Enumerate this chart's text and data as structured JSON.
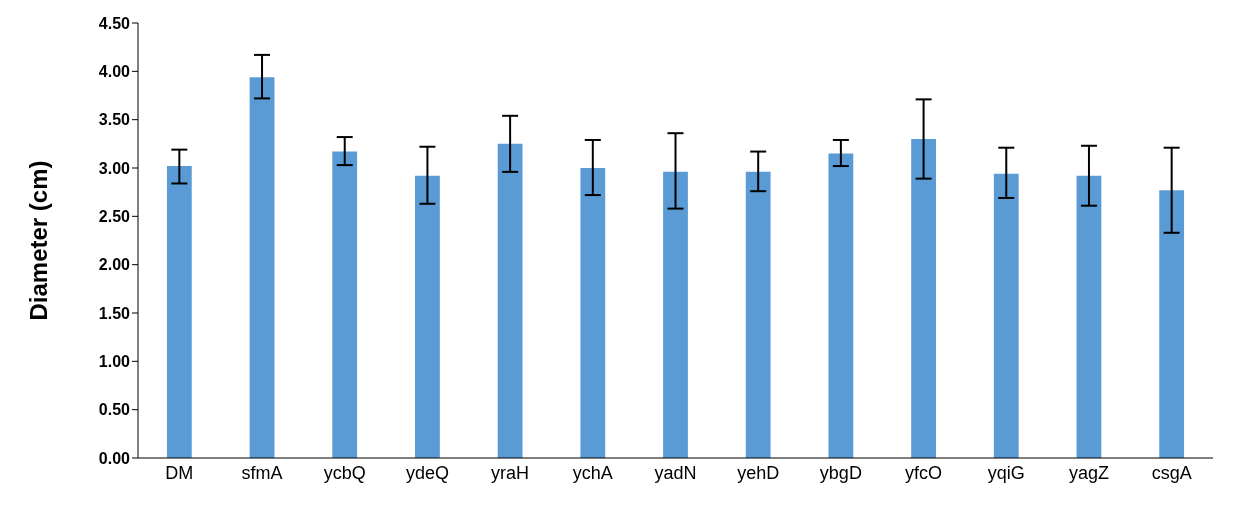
{
  "chart_data": {
    "type": "bar",
    "ylabel": "Diameter (cm)",
    "categories": [
      "DM",
      "sfmA",
      "ycbQ",
      "ydeQ",
      "yraH",
      "ychA",
      "yadN",
      "yehD",
      "ybgD",
      "yfcO",
      "yqiG",
      "yagZ",
      "csgA"
    ],
    "values": [
      3.02,
      3.94,
      3.17,
      2.92,
      3.25,
      3.0,
      2.96,
      2.96,
      3.15,
      3.3,
      2.94,
      2.92,
      2.77
    ],
    "errors": [
      [
        2.84,
        3.19
      ],
      [
        3.72,
        4.17
      ],
      [
        3.03,
        3.32
      ],
      [
        2.63,
        3.22
      ],
      [
        2.96,
        3.54
      ],
      [
        2.72,
        3.29
      ],
      [
        2.58,
        3.36
      ],
      [
        2.76,
        3.17
      ],
      [
        3.02,
        3.29
      ],
      [
        2.89,
        3.71
      ],
      [
        2.69,
        3.21
      ],
      [
        2.61,
        3.23
      ],
      [
        2.33,
        3.21
      ]
    ],
    "color": "#5b9bd5",
    "ylim": [
      0,
      4.5
    ],
    "yticks": [
      {
        "value": 0,
        "label": "0.00"
      },
      {
        "value": 0.5,
        "label": "0.50"
      },
      {
        "value": 1,
        "label": "1.00"
      },
      {
        "value": 1.5,
        "label": "1.50"
      },
      {
        "value": 2,
        "label": "2.00"
      },
      {
        "value": 2.5,
        "label": "2.50"
      },
      {
        "value": 3,
        "label": "3.00"
      },
      {
        "value": 3.5,
        "label": "3.50"
      },
      {
        "value": 4,
        "label": "4.00"
      },
      {
        "value": 4.5,
        "label": "4.50"
      }
    ],
    "grid": false,
    "legend": false
  }
}
